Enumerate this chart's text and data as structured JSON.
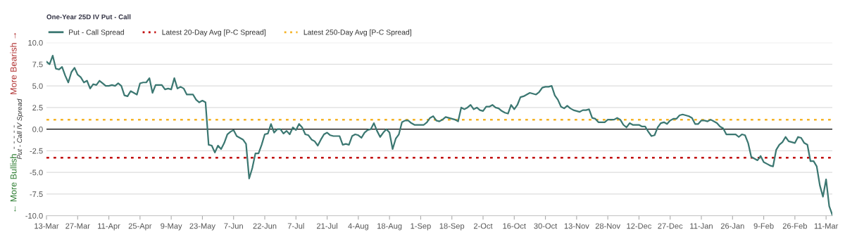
{
  "chart_data": {
    "type": "line",
    "title": "One-Year 25D IV Put - Call",
    "ylabel": "Put - Call IV Spread",
    "annotations": [
      "← More Bullish",
      "- - - - -",
      "More Bearish →"
    ],
    "categories": [
      "13-Mar",
      null,
      null,
      null,
      null,
      null,
      null,
      null,
      null,
      null,
      "27-Mar",
      null,
      null,
      null,
      null,
      null,
      null,
      null,
      null,
      null,
      "11-Apr",
      null,
      null,
      null,
      null,
      null,
      null,
      null,
      null,
      null,
      "25-Apr",
      null,
      null,
      null,
      null,
      null,
      null,
      null,
      null,
      null,
      "9-May",
      null,
      null,
      null,
      null,
      null,
      null,
      null,
      null,
      null,
      "23-May",
      null,
      null,
      null,
      null,
      null,
      null,
      null,
      null,
      null,
      "7-Jun",
      null,
      null,
      null,
      null,
      null,
      null,
      null,
      null,
      null,
      "22-Jun",
      null,
      null,
      null,
      null,
      null,
      null,
      null,
      null,
      null,
      "7-Jul",
      null,
      null,
      null,
      null,
      null,
      null,
      null,
      null,
      null,
      "21-Jul",
      null,
      null,
      null,
      null,
      null,
      null,
      null,
      null,
      null,
      "4-Aug",
      null,
      null,
      null,
      null,
      null,
      null,
      null,
      null,
      null,
      "18-Aug",
      null,
      null,
      null,
      null,
      null,
      null,
      null,
      null,
      null,
      "1-Sep",
      null,
      null,
      null,
      null,
      null,
      null,
      null,
      null,
      null,
      "18-Sep",
      null,
      null,
      null,
      null,
      null,
      null,
      null,
      null,
      null,
      "2-Oct",
      null,
      null,
      null,
      null,
      null,
      null,
      null,
      null,
      null,
      "16-Oct",
      null,
      null,
      null,
      null,
      null,
      null,
      null,
      null,
      null,
      "30-Oct",
      null,
      null,
      null,
      null,
      null,
      null,
      null,
      null,
      null,
      "13-Nov",
      null,
      null,
      null,
      null,
      null,
      null,
      null,
      null,
      null,
      "28-Nov",
      null,
      null,
      null,
      null,
      null,
      null,
      null,
      null,
      null,
      "12-Dec",
      null,
      null,
      null,
      null,
      null,
      null,
      null,
      null,
      null,
      "27-Dec",
      null,
      null,
      null,
      null,
      null,
      null,
      null,
      null,
      null,
      "11-Jan",
      null,
      null,
      null,
      null,
      null,
      null,
      null,
      null,
      null,
      "26-Jan",
      null,
      null,
      null,
      null,
      null,
      null,
      null,
      null,
      null,
      "9-Feb",
      null,
      null,
      null,
      null,
      null,
      null,
      null,
      null,
      null,
      "26-Feb",
      null,
      null,
      null,
      null,
      null,
      null,
      null,
      null,
      null,
      "11-Mar",
      null,
      null
    ],
    "series": [
      {
        "name": "Put - Call Spread",
        "color": "#3b7771",
        "values": [
          7.8,
          7.5,
          8.5,
          7.0,
          6.9,
          7.2,
          6.2,
          5.4,
          6.6,
          7.1,
          6.3,
          6.0,
          5.4,
          5.6,
          4.7,
          5.2,
          5.1,
          5.6,
          5.3,
          5.0,
          5.0,
          5.1,
          5.0,
          5.3,
          5.0,
          3.9,
          3.8,
          4.4,
          4.2,
          4.0,
          5.3,
          5.4,
          5.4,
          5.9,
          4.2,
          5.1,
          5.1,
          5.1,
          4.6,
          4.7,
          4.6,
          5.9,
          4.7,
          4.9,
          4.7,
          4.0,
          4.0,
          4.0,
          3.4,
          3.1,
          3.3,
          3.1,
          -1.8,
          -1.9,
          -2.7,
          -1.9,
          -2.3,
          -1.6,
          -0.6,
          -0.3,
          -0.1,
          -0.8,
          -1.0,
          -1.2,
          -1.7,
          -5.7,
          -4.5,
          -2.8,
          -2.8,
          -1.8,
          -0.6,
          -0.5,
          0.6,
          -0.4,
          0.0,
          0.0,
          -0.5,
          -0.2,
          -0.6,
          0.2,
          -0.1,
          0.6,
          0.2,
          -0.6,
          -0.7,
          -1.2,
          -1.4,
          -1.9,
          -1.2,
          -0.6,
          -0.4,
          -0.7,
          -0.8,
          -0.8,
          -0.8,
          -1.8,
          -1.7,
          -1.8,
          -0.8,
          -0.6,
          -0.7,
          -1.0,
          -0.4,
          -0.1,
          0.0,
          0.7,
          -0.2,
          -0.9,
          -0.4,
          0.0,
          -0.4,
          -2.3,
          -1.1,
          -0.6,
          0.8,
          1.0,
          1.0,
          0.7,
          0.5,
          0.5,
          0.5,
          0.5,
          0.8,
          1.3,
          1.5,
          1.0,
          0.9,
          1.1,
          1.4,
          1.3,
          1.2,
          1.1,
          0.9,
          2.5,
          2.3,
          2.5,
          2.8,
          2.3,
          2.5,
          2.2,
          2.1,
          2.6,
          2.6,
          2.8,
          2.5,
          2.4,
          2.1,
          1.9,
          1.8,
          2.8,
          2.3,
          2.8,
          3.7,
          3.8,
          4.0,
          4.2,
          4.1,
          4.0,
          4.3,
          4.8,
          4.9,
          4.9,
          5.0,
          3.9,
          3.4,
          2.6,
          2.4,
          2.7,
          2.4,
          2.2,
          2.1,
          2.0,
          2.2,
          2.2,
          2.3,
          1.3,
          1.2,
          0.8,
          0.8,
          0.8,
          1.1,
          1.1,
          1.1,
          1.3,
          1.1,
          0.5,
          0.2,
          0.7,
          0.5,
          0.5,
          0.5,
          0.3,
          0.3,
          -0.3,
          -0.8,
          -0.7,
          0.2,
          0.7,
          0.8,
          0.6,
          1.0,
          1.2,
          1.2,
          1.6,
          1.7,
          1.6,
          1.5,
          1.3,
          0.6,
          0.6,
          1.0,
          1.0,
          0.9,
          1.1,
          0.9,
          0.7,
          0.3,
          0.1,
          -0.6,
          -0.6,
          -0.6,
          -0.6,
          -0.9,
          -0.6,
          -0.7,
          -1.6,
          -3.2,
          -3.4,
          -3.6,
          -3.1,
          -3.8,
          -4.0,
          -4.2,
          -4.3,
          -2.4,
          -1.8,
          -1.5,
          -0.9,
          -1.4,
          -1.5,
          -1.6,
          -0.9,
          -1.0,
          -1.6,
          -1.8,
          -3.7,
          -3.7,
          -4.3,
          -6.5,
          -7.8,
          -5.8,
          -8.9,
          -9.9
        ]
      }
    ],
    "ref_lines": [
      {
        "axis": "y",
        "value": -3.3,
        "label": "Latest 20-Day Avg [P-C Spread]",
        "color": "#c00000",
        "line_style": "dotted"
      },
      {
        "axis": "y",
        "value": 1.1,
        "label": "Latest 250-Day Avg [P-C Spread]",
        "color": "#f5b324",
        "line_style": "dotted"
      },
      {
        "axis": "y",
        "value": 0,
        "label": null,
        "color": "#000000",
        "line_style": "solid"
      }
    ],
    "ylim": [
      -10,
      10
    ],
    "yticks": [
      {
        "value": -10,
        "label": "-10.0"
      },
      {
        "value": -7.5,
        "label": "-7.5"
      },
      {
        "value": -5,
        "label": "-5.0"
      },
      {
        "value": -2.5,
        "label": "-2.5"
      },
      {
        "value": 0,
        "label": "0.0"
      },
      {
        "value": 2.5,
        "label": "2.5"
      },
      {
        "value": 5,
        "label": "5.0"
      },
      {
        "value": 7.5,
        "label": "7.5"
      },
      {
        "value": 10,
        "label": "10.0"
      }
    ],
    "grid": "y",
    "legend": "top left",
    "marker": "none",
    "line_style": "solid"
  }
}
